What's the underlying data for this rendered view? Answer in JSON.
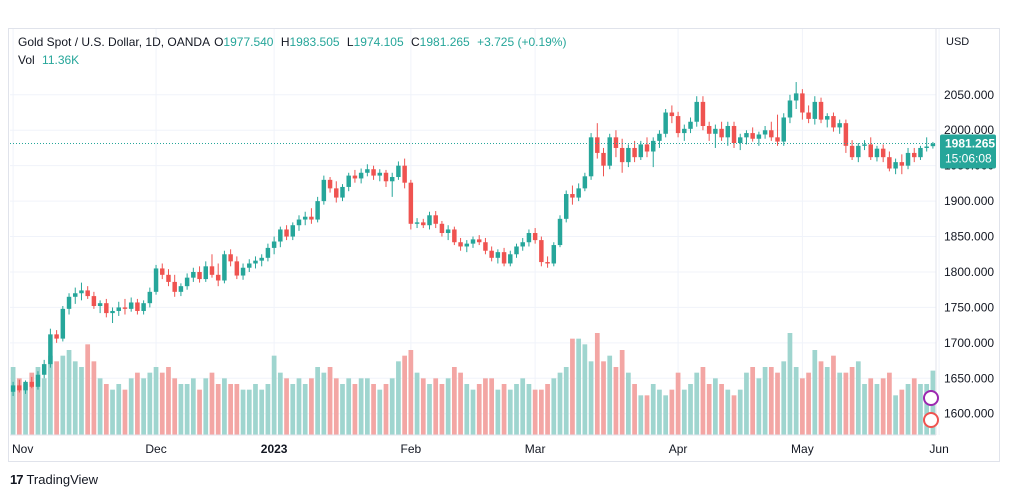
{
  "legend": {
    "symbol": "Gold Spot / U.S. Dollar, 1D, OANDA",
    "o_label": "O",
    "o_val": "1977.540",
    "h_label": "H",
    "h_val": "1983.505",
    "l_label": "L",
    "l_val": "1974.105",
    "c_label": "C",
    "c_val": "1981.265",
    "change": "+3.725 (+0.19%)",
    "vol_label": "Vol",
    "vol_val": "11.36K"
  },
  "footer": {
    "logo": "17",
    "brand": "TradingView"
  },
  "chart_data": {
    "type": "candlestick",
    "currency_label": "USD",
    "price_ticks": [
      1600,
      1650,
      1700,
      1750,
      1800,
      1850,
      1900,
      1950,
      2000,
      2050
    ],
    "price_tick_labels": [
      "1600.000",
      "1650.000",
      "1700.000",
      "1750.000",
      "1800.000",
      "1850.000",
      "1900.000",
      "1950.000",
      "2000.000",
      "2050.000"
    ],
    "ylim": [
      1570,
      2085
    ],
    "last_price": 1981.265,
    "last_price_label": "1981.265",
    "countdown": "15:06:08",
    "x_labels": [
      {
        "label": "Nov",
        "index": 0
      },
      {
        "label": "Dec",
        "index": 23
      },
      {
        "label": "2023",
        "index": 42
      },
      {
        "label": "Feb",
        "index": 64
      },
      {
        "label": "Mar",
        "index": 84
      },
      {
        "label": "Apr",
        "index": 107
      },
      {
        "label": "May",
        "index": 127
      },
      {
        "label": "Jun",
        "index": 149
      }
    ],
    "colors": {
      "up": "#26a69a",
      "down": "#ef5350",
      "up_vol": "#9fd5cf",
      "down_vol": "#f3a6a4"
    },
    "grid": true,
    "candles": [
      [
        1631,
        1645,
        1625,
        1640,
        12
      ],
      [
        1640,
        1648,
        1630,
        1633,
        10
      ],
      [
        1633,
        1647,
        1628,
        1645,
        9
      ],
      [
        1645,
        1652,
        1636,
        1638,
        11
      ],
      [
        1638,
        1660,
        1634,
        1655,
        12
      ],
      [
        1655,
        1676,
        1650,
        1670,
        10
      ],
      [
        1670,
        1720,
        1665,
        1712,
        14
      ],
      [
        1712,
        1718,
        1700,
        1706,
        13
      ],
      [
        1706,
        1752,
        1702,
        1748,
        14
      ],
      [
        1748,
        1770,
        1740,
        1765,
        15
      ],
      [
        1765,
        1778,
        1755,
        1770,
        13
      ],
      [
        1770,
        1785,
        1760,
        1774,
        12
      ],
      [
        1774,
        1780,
        1762,
        1766,
        16
      ],
      [
        1766,
        1772,
        1748,
        1752,
        13
      ],
      [
        1752,
        1760,
        1742,
        1756,
        10
      ],
      [
        1756,
        1762,
        1736,
        1742,
        9
      ],
      [
        1742,
        1750,
        1728,
        1745,
        8
      ],
      [
        1745,
        1758,
        1738,
        1750,
        9
      ],
      [
        1750,
        1762,
        1740,
        1748,
        8
      ],
      [
        1748,
        1764,
        1744,
        1757,
        10
      ],
      [
        1757,
        1762,
        1740,
        1745,
        11
      ],
      [
        1745,
        1760,
        1740,
        1756,
        10
      ],
      [
        1756,
        1778,
        1750,
        1772,
        11
      ],
      [
        1772,
        1810,
        1768,
        1805,
        12
      ],
      [
        1805,
        1812,
        1790,
        1796,
        11
      ],
      [
        1796,
        1804,
        1780,
        1786,
        12
      ],
      [
        1786,
        1796,
        1765,
        1772,
        10
      ],
      [
        1772,
        1784,
        1766,
        1780,
        9
      ],
      [
        1780,
        1798,
        1775,
        1792,
        9
      ],
      [
        1792,
        1806,
        1786,
        1800,
        10
      ],
      [
        1800,
        1808,
        1785,
        1790,
        8
      ],
      [
        1790,
        1815,
        1786,
        1808,
        10
      ],
      [
        1808,
        1825,
        1792,
        1796,
        11
      ],
      [
        1796,
        1812,
        1780,
        1788,
        9
      ],
      [
        1788,
        1830,
        1784,
        1825,
        10
      ],
      [
        1825,
        1832,
        1808,
        1815,
        9
      ],
      [
        1815,
        1822,
        1790,
        1795,
        9
      ],
      [
        1795,
        1812,
        1789,
        1806,
        8
      ],
      [
        1806,
        1818,
        1800,
        1812,
        8
      ],
      [
        1812,
        1822,
        1805,
        1816,
        9
      ],
      [
        1816,
        1825,
        1808,
        1820,
        8
      ],
      [
        1820,
        1840,
        1815,
        1834,
        9
      ],
      [
        1834,
        1850,
        1825,
        1843,
        14
      ],
      [
        1843,
        1864,
        1835,
        1860,
        11
      ],
      [
        1860,
        1866,
        1845,
        1850,
        10
      ],
      [
        1850,
        1870,
        1845,
        1866,
        9
      ],
      [
        1866,
        1880,
        1858,
        1874,
        10
      ],
      [
        1874,
        1885,
        1866,
        1878,
        9
      ],
      [
        1878,
        1890,
        1868,
        1874,
        10
      ],
      [
        1874,
        1906,
        1870,
        1900,
        12
      ],
      [
        1900,
        1936,
        1895,
        1930,
        11
      ],
      [
        1930,
        1934,
        1912,
        1918,
        12
      ],
      [
        1918,
        1928,
        1898,
        1905,
        10
      ],
      [
        1905,
        1924,
        1900,
        1920,
        9
      ],
      [
        1920,
        1940,
        1914,
        1936,
        10
      ],
      [
        1936,
        1944,
        1926,
        1932,
        9
      ],
      [
        1932,
        1946,
        1925,
        1940,
        10
      ],
      [
        1940,
        1952,
        1935,
        1945,
        10
      ],
      [
        1945,
        1950,
        1930,
        1936,
        9
      ],
      [
        1936,
        1945,
        1928,
        1940,
        8
      ],
      [
        1940,
        1944,
        1920,
        1928,
        9
      ],
      [
        1928,
        1940,
        1906,
        1934,
        10
      ],
      [
        1934,
        1956,
        1930,
        1950,
        13
      ],
      [
        1950,
        1960,
        1918,
        1926,
        14
      ],
      [
        1926,
        1930,
        1860,
        1868,
        15
      ],
      [
        1868,
        1876,
        1862,
        1870,
        11
      ],
      [
        1870,
        1875,
        1862,
        1866,
        10
      ],
      [
        1866,
        1885,
        1860,
        1880,
        9
      ],
      [
        1880,
        1886,
        1862,
        1868,
        10
      ],
      [
        1868,
        1872,
        1850,
        1855,
        9
      ],
      [
        1855,
        1866,
        1845,
        1860,
        10
      ],
      [
        1860,
        1864,
        1838,
        1842,
        12
      ],
      [
        1842,
        1848,
        1830,
        1836,
        11
      ],
      [
        1836,
        1845,
        1828,
        1840,
        9
      ],
      [
        1840,
        1850,
        1834,
        1846,
        8
      ],
      [
        1846,
        1852,
        1838,
        1842,
        9
      ],
      [
        1842,
        1848,
        1825,
        1830,
        10
      ],
      [
        1830,
        1836,
        1815,
        1820,
        10
      ],
      [
        1820,
        1832,
        1812,
        1828,
        8
      ],
      [
        1828,
        1834,
        1808,
        1812,
        9
      ],
      [
        1812,
        1830,
        1808,
        1825,
        8
      ],
      [
        1825,
        1840,
        1820,
        1836,
        9
      ],
      [
        1836,
        1848,
        1830,
        1842,
        10
      ],
      [
        1842,
        1860,
        1836,
        1855,
        9
      ],
      [
        1855,
        1862,
        1840,
        1845,
        8
      ],
      [
        1845,
        1850,
        1808,
        1814,
        8
      ],
      [
        1814,
        1822,
        1806,
        1812,
        9
      ],
      [
        1812,
        1842,
        1808,
        1838,
        10
      ],
      [
        1838,
        1880,
        1835,
        1875,
        11
      ],
      [
        1875,
        1915,
        1870,
        1910,
        12
      ],
      [
        1910,
        1922,
        1895,
        1905,
        17
      ],
      [
        1905,
        1925,
        1900,
        1918,
        17
      ],
      [
        1918,
        1940,
        1914,
        1935,
        16
      ],
      [
        1935,
        1996,
        1930,
        1990,
        13
      ],
      [
        1990,
        2010,
        1960,
        1968,
        18
      ],
      [
        1968,
        1975,
        1935,
        1950,
        13
      ],
      [
        1950,
        1995,
        1945,
        1990,
        14
      ],
      [
        1990,
        2000,
        1962,
        1975,
        12
      ],
      [
        1975,
        1988,
        1940,
        1955,
        15
      ],
      [
        1955,
        1980,
        1948,
        1975,
        11
      ],
      [
        1975,
        1985,
        1955,
        1962,
        9
      ],
      [
        1962,
        1985,
        1958,
        1980,
        7
      ],
      [
        1980,
        1990,
        1962,
        1970,
        7
      ],
      [
        1970,
        1990,
        1948,
        1985,
        9
      ],
      [
        1985,
        2000,
        1975,
        1995,
        8
      ],
      [
        1995,
        2030,
        1990,
        2025,
        7
      ],
      [
        2025,
        2035,
        2010,
        2020,
        8
      ],
      [
        2020,
        2026,
        1990,
        1996,
        11
      ],
      [
        1996,
        2008,
        1985,
        2002,
        8
      ],
      [
        2002,
        2018,
        1996,
        2012,
        9
      ],
      [
        2012,
        2048,
        2005,
        2040,
        11
      ],
      [
        2040,
        2048,
        2000,
        2006,
        12
      ],
      [
        2006,
        2012,
        1985,
        1995,
        9
      ],
      [
        1995,
        2008,
        1975,
        2002,
        10
      ],
      [
        2002,
        2012,
        1985,
        1990,
        9
      ],
      [
        1990,
        2012,
        1978,
        2006,
        8
      ],
      [
        2006,
        2012,
        1975,
        1982,
        7
      ],
      [
        1982,
        1995,
        1972,
        1990,
        8
      ],
      [
        1990,
        2000,
        1980,
        1996,
        11
      ],
      [
        1996,
        2004,
        1984,
        1988,
        12
      ],
      [
        1988,
        1998,
        1978,
        1994,
        10
      ],
      [
        1994,
        2006,
        1988,
        2000,
        12
      ],
      [
        2000,
        2012,
        1985,
        1990,
        12
      ],
      [
        1990,
        2022,
        1978,
        1984,
        11
      ],
      [
        1984,
        2024,
        1978,
        2018,
        13
      ],
      [
        2018,
        2050,
        2010,
        2042,
        18
      ],
      [
        2042,
        2068,
        2030,
        2052,
        12
      ],
      [
        2052,
        2058,
        2015,
        2025,
        10
      ],
      [
        2025,
        2035,
        2010,
        2016,
        11
      ],
      [
        2016,
        2048,
        2008,
        2040,
        15
      ],
      [
        2040,
        2046,
        2010,
        2015,
        13
      ],
      [
        2015,
        2024,
        2004,
        2020,
        12
      ],
      [
        2020,
        2025,
        1998,
        2004,
        14
      ],
      [
        2004,
        2015,
        1995,
        2010,
        11
      ],
      [
        2010,
        2015,
        1968,
        1978,
        11
      ],
      [
        1978,
        1986,
        1958,
        1962,
        12
      ],
      [
        1962,
        1982,
        1955,
        1978,
        13
      ],
      [
        1978,
        1986,
        1972,
        1980,
        9
      ],
      [
        1980,
        1990,
        1958,
        1962,
        10
      ],
      [
        1962,
        1978,
        1956,
        1974,
        9
      ],
      [
        1974,
        1980,
        1955,
        1962,
        10
      ],
      [
        1962,
        1970,
        1942,
        1946,
        11
      ],
      [
        1946,
        1960,
        1938,
        1955,
        7
      ],
      [
        1955,
        1966,
        1938,
        1950,
        8
      ],
      [
        1950,
        1975,
        1945,
        1968,
        9
      ],
      [
        1968,
        1975,
        1955,
        1962,
        10
      ],
      [
        1962,
        1978,
        1958,
        1975,
        9
      ],
      [
        1975,
        1990,
        1970,
        1977,
        9
      ],
      [
        1977.54,
        1983.505,
        1974.105,
        1981.265,
        11.36
      ]
    ]
  }
}
